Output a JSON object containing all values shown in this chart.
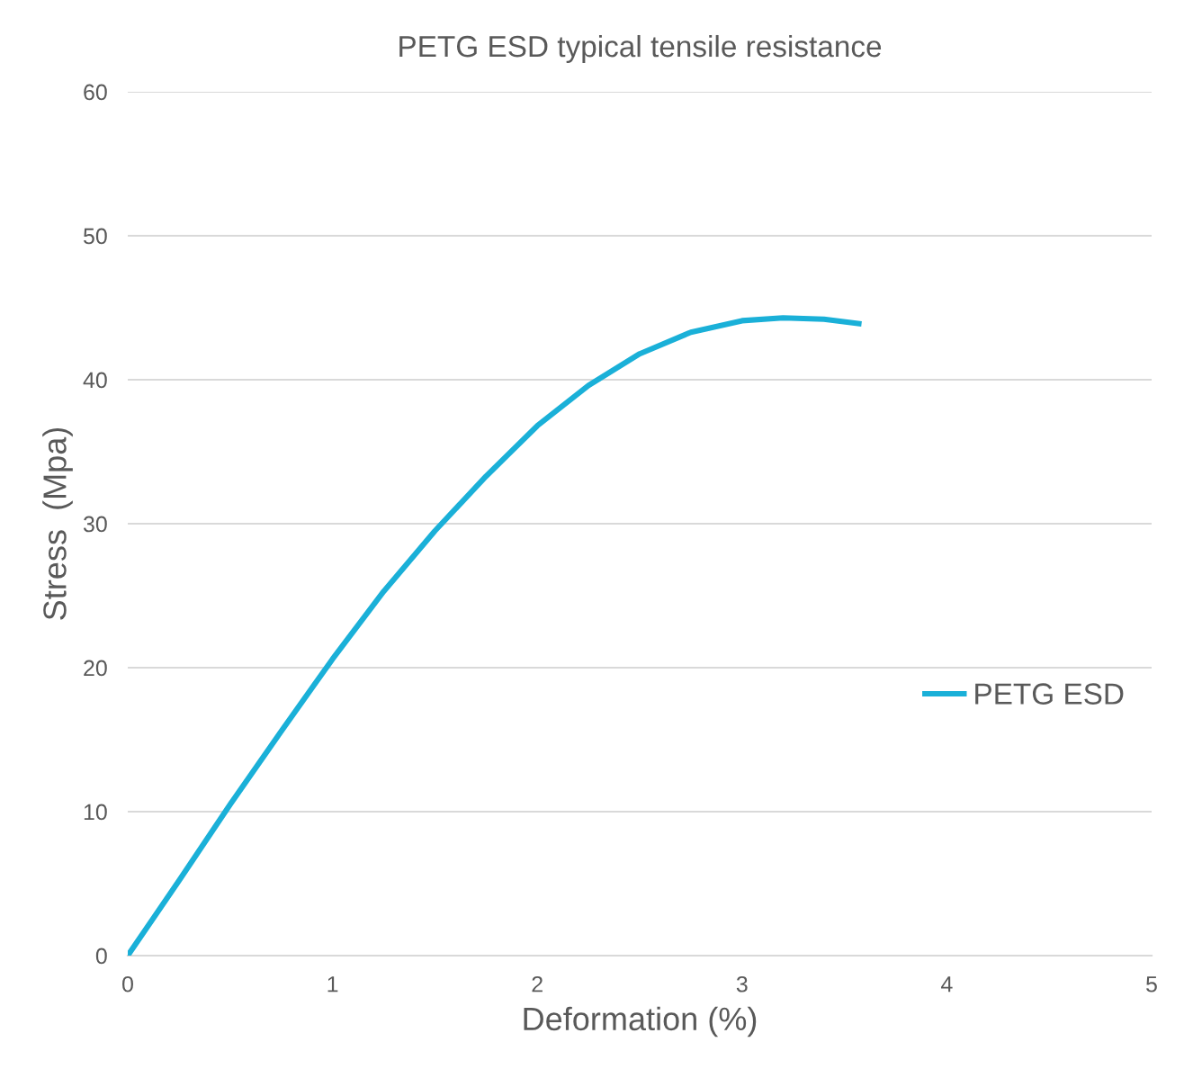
{
  "chart_data": {
    "type": "line",
    "title": "PETG ESD typical tensile resistance",
    "xlabel": "Deformation (%)",
    "ylabel": "Stress  (Mpa)",
    "series": [
      {
        "name": "PETG ESD",
        "color": "#1ab0d8",
        "x": [
          0,
          0.25,
          0.5,
          0.75,
          1.0,
          1.25,
          1.5,
          1.75,
          2.0,
          2.25,
          2.5,
          2.75,
          3.0,
          3.2,
          3.4,
          3.57
        ],
        "values": [
          0,
          5.2,
          10.5,
          15.6,
          20.6,
          25.3,
          29.5,
          33.3,
          36.8,
          39.6,
          41.8,
          43.3,
          44.1,
          44.3,
          44.2,
          43.9
        ]
      }
    ],
    "xlim": [
      0,
      5
    ],
    "xticks": [
      0,
      1,
      2,
      3,
      4,
      5
    ],
    "ylim": [
      0,
      60
    ],
    "yticks": [
      0,
      10,
      20,
      30,
      40,
      50,
      60
    ],
    "grid": "y",
    "legend": "right",
    "marker": "none",
    "line_style": "solid"
  }
}
